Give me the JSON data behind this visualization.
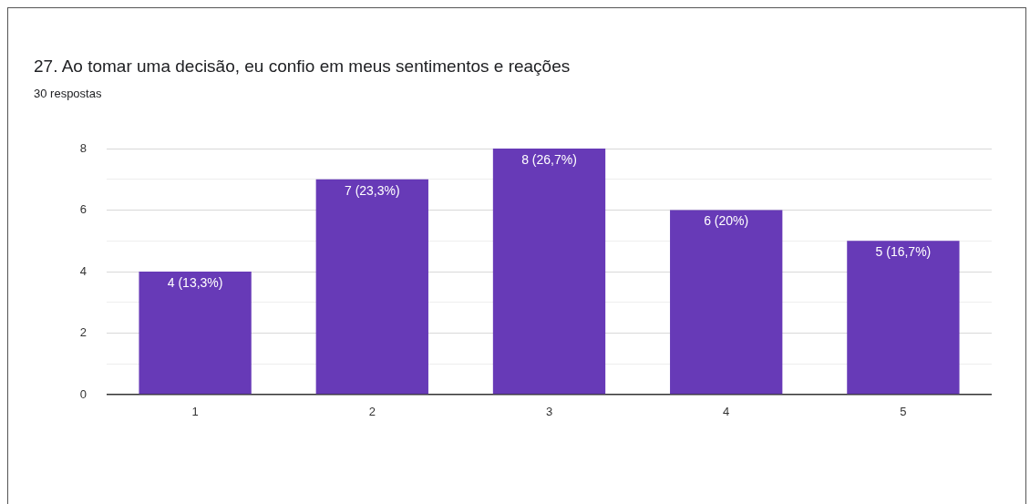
{
  "chart_data": {
    "type": "bar",
    "title": "27. Ao tomar uma decisão, eu confio em meus sentimentos e reações",
    "subtitle": "30 respostas",
    "categories": [
      "1",
      "2",
      "3",
      "4",
      "5"
    ],
    "values": [
      4,
      7,
      8,
      6,
      5
    ],
    "color": "#673ab7",
    "value_labels": [
      "4 (13,3%)",
      "7 (23,3%)",
      "8 (26,7%)",
      "6 (20%)",
      "5 (16,7%)"
    ],
    "ylim": [
      0,
      8
    ],
    "yticks": [
      0,
      {
        "value": 1,
        "label": null
      },
      2,
      {
        "value": 3,
        "label": null
      },
      4,
      {
        "value": 5,
        "label": null
      },
      6,
      {
        "value": 7,
        "label": null
      },
      8
    ],
    "grid": "y",
    "legend": false
  }
}
